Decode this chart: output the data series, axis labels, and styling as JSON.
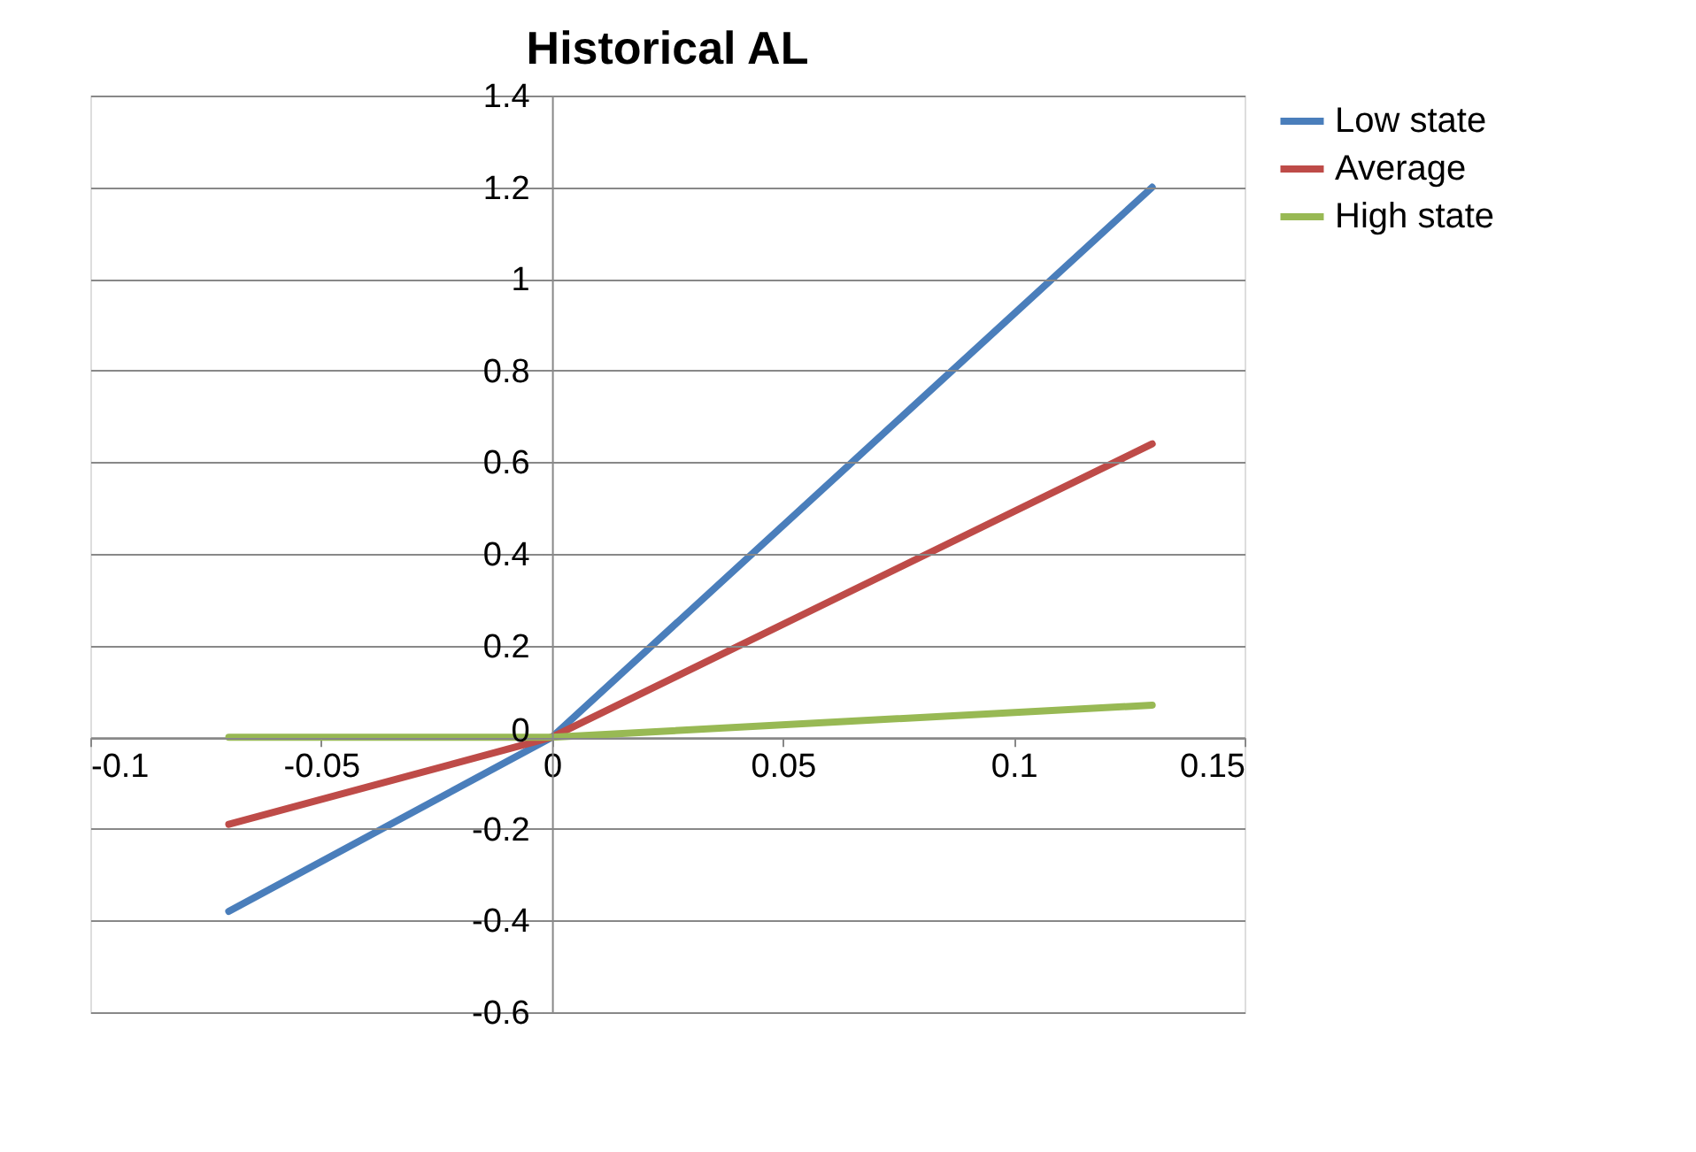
{
  "chart_data": {
    "type": "line",
    "title": "Historical  AL",
    "x": [
      -0.07,
      0,
      0.13
    ],
    "series": [
      {
        "name": "Low state",
        "color": "#4a7ebb",
        "values": [
          -0.38,
          0,
          1.2
        ]
      },
      {
        "name": "Average",
        "color": "#be4b48",
        "values": [
          -0.19,
          0,
          0.64
        ]
      },
      {
        "name": "High state",
        "color": "#98b954",
        "values": [
          0,
          0,
          0.07
        ]
      }
    ],
    "xlim": [
      -0.1,
      0.15
    ],
    "xticks": [
      -0.1,
      -0.05,
      0,
      0.05,
      0.1,
      0.15
    ],
    "ylim": [
      -0.6,
      1.4
    ],
    "yticks": [
      -0.6,
      -0.4,
      -0.2,
      0,
      0.2,
      0.4,
      0.6,
      0.8,
      1,
      1.2,
      1.4
    ],
    "grid": "y",
    "legend": "right",
    "marker": "none",
    "line_style": "solid"
  }
}
